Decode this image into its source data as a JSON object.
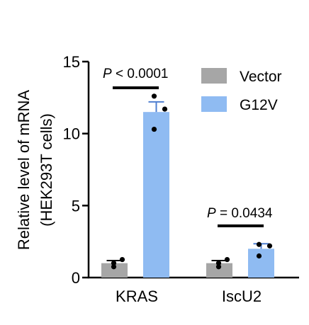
{
  "chart_data": {
    "type": "bar",
    "categories": [
      "KRAS",
      "IscU2"
    ],
    "series": [
      {
        "name": "Vector",
        "color": "#a6a6a6",
        "values": [
          1.0,
          1.0
        ],
        "errors": [
          0.18,
          0.18
        ],
        "points": [
          [
            0.75,
            1.0,
            1.25
          ],
          [
            0.75,
            1.0,
            1.25
          ]
        ]
      },
      {
        "name": "G12V",
        "color": "#8fbbf2",
        "values": [
          11.5,
          2.0
        ],
        "errors": [
          0.7,
          0.35
        ],
        "points": [
          [
            10.3,
            11.7,
            12.6
          ],
          [
            1.5,
            2.2,
            2.3
          ]
        ]
      }
    ],
    "ylabel_line1": "Relative level of mRNA",
    "ylabel_line2": "(HEK293T cells)",
    "ylim": [
      0,
      15
    ],
    "yticks": [
      "0",
      "5",
      "10",
      "15"
    ],
    "significance": [
      {
        "prefix": "P",
        "text": " < 0.0001",
        "category": "KRAS"
      },
      {
        "prefix": "P",
        "text": " = 0.0434",
        "category": "IscU2"
      }
    ],
    "legend_position": "top-right",
    "grid": false
  }
}
